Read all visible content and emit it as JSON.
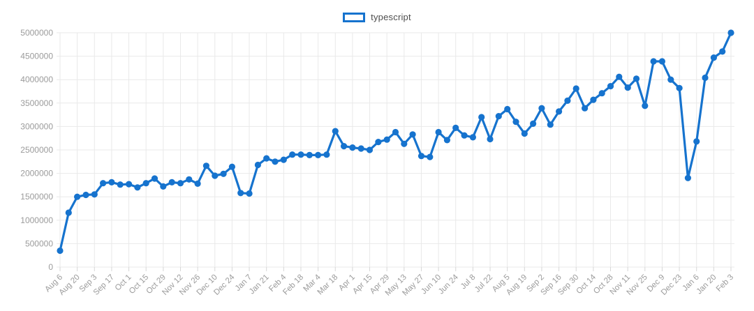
{
  "legend": {
    "label": "typescript"
  },
  "colors": {
    "line": "#1673ce",
    "point": "#1673ce",
    "grid": "#e9e9e9",
    "tick": "#d6d6d6",
    "axis_text": "#9b9b9b",
    "legend_text": "#4d4d4d",
    "background": "#ffffff"
  },
  "chart_data": {
    "type": "line",
    "title": "",
    "xlabel": "",
    "ylabel": "",
    "legend_position": "top",
    "grid": true,
    "ylim": [
      0,
      5000000
    ],
    "y_ticks": [
      0,
      500000,
      1000000,
      1500000,
      2000000,
      2500000,
      3000000,
      3500000,
      4000000,
      4500000,
      5000000
    ],
    "x_tick_labels": [
      "Aug 6",
      "Aug 20",
      "Sep 3",
      "Sep 17",
      "Oct 1",
      "Oct 15",
      "Oct 29",
      "Nov 12",
      "Nov 26",
      "Dec 10",
      "Dec 24",
      "Jan 7",
      "Jan 21",
      "Feb 4",
      "Feb 18",
      "Mar 4",
      "Mar 18",
      "Apr 1",
      "Apr 15",
      "Apr 29",
      "May 13",
      "May 27",
      "Jun 10",
      "Jun 24",
      "Jul 8",
      "Jul 22",
      "Aug 5",
      "Aug 19",
      "Sep 2",
      "Sep 16",
      "Sep 30",
      "Oct 14",
      "Oct 28",
      "Nov 11",
      "Nov 25",
      "Dec 9",
      "Dec 23",
      "Jan 6",
      "Jan 20",
      "Feb 3"
    ],
    "x_labeled_every_n_points": 2,
    "series": [
      {
        "name": "typescript",
        "values": [
          350000,
          1160000,
          1500000,
          1540000,
          1550000,
          1790000,
          1810000,
          1760000,
          1770000,
          1700000,
          1790000,
          1890000,
          1720000,
          1810000,
          1790000,
          1870000,
          1780000,
          2160000,
          1950000,
          1990000,
          2140000,
          1580000,
          1570000,
          2180000,
          2320000,
          2250000,
          2290000,
          2400000,
          2400000,
          2390000,
          2390000,
          2400000,
          2900000,
          2580000,
          2550000,
          2530000,
          2500000,
          2670000,
          2720000,
          2880000,
          2630000,
          2830000,
          2370000,
          2350000,
          2880000,
          2710000,
          2970000,
          2810000,
          2770000,
          3200000,
          2730000,
          3220000,
          3370000,
          3100000,
          2850000,
          3060000,
          3390000,
          3040000,
          3320000,
          3550000,
          3810000,
          3390000,
          3570000,
          3710000,
          3860000,
          4060000,
          3830000,
          4020000,
          3440000,
          4390000,
          4390000,
          4000000,
          3820000,
          1900000,
          2680000,
          4040000,
          4470000,
          4600000,
          5000000
        ]
      }
    ]
  }
}
